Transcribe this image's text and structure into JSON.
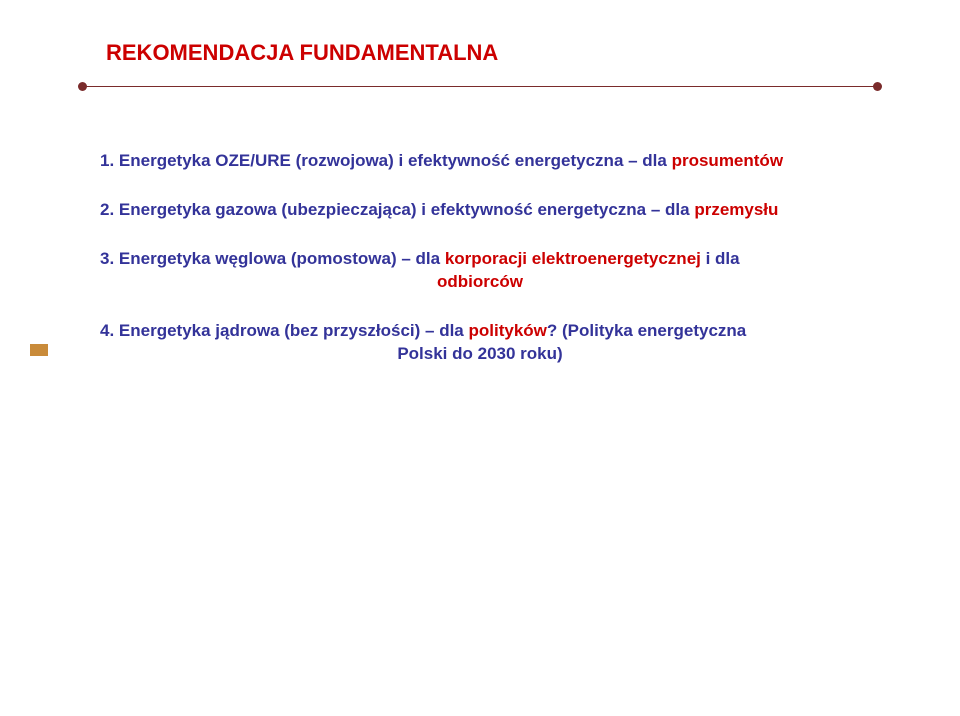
{
  "title": "REKOMENDACJA FUNDAMENTALNA",
  "colors": {
    "title": "#cc0000",
    "rule": "#7a2b2b",
    "body": "#333399",
    "highlight": "#cc0000",
    "leftbar": "#c98b3a",
    "background": "#ffffff"
  },
  "items": [
    {
      "num": "1.",
      "pre": "Energetyka OZE/URE (rozwojowa) i efektywność energetyczna – dla ",
      "hl": "prosumentów"
    },
    {
      "num": "2.",
      "pre": "Energetyka gazowa (ubezpieczająca) i efektywność energetyczna  – dla ",
      "hl": "przemysłu"
    },
    {
      "num": "3.",
      "pre": "Energetyka węglowa (pomostowa) – dla ",
      "hl": "korporacji elektroenergetycznej",
      "post1": " i dla",
      "tail": "odbiorców"
    },
    {
      "num": "4.",
      "pre": "Energetyka jądrowa (bez przyszłości) – dla ",
      "hl": "polityków",
      "post1": "? (Polityka energetyczna",
      "tail": "Polski  do 2030 roku)"
    }
  ]
}
